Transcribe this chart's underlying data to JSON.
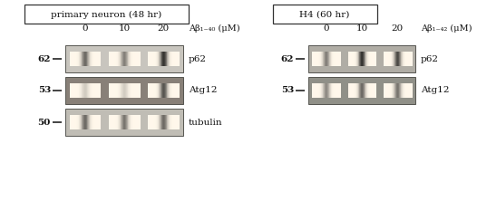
{
  "bg_color": "white",
  "left_title": "primary neuron (48 hr)",
  "right_title": "H4 (60 hr)",
  "left_xlabel": "Aβ₁₋₄₀ (μM)",
  "right_xlabel": "Aβ₁₋₄₂ (μM)",
  "conc_labels": [
    "0",
    "10",
    "20"
  ],
  "left_bands": [
    {
      "label": "p62",
      "mw": "62",
      "pattern": [
        0.65,
        0.55,
        0.9
      ],
      "box_bg": "#c8c5be"
    },
    {
      "label": "Atg12",
      "mw": "53",
      "pattern": [
        0.2,
        0.2,
        0.75
      ],
      "box_bg": "#888078"
    },
    {
      "label": "tubulin",
      "mw": "50",
      "pattern": [
        0.65,
        0.6,
        0.65
      ],
      "box_bg": "#c0bdb5"
    }
  ],
  "right_bands": [
    {
      "label": "p62",
      "mw": "62",
      "pattern": [
        0.55,
        0.9,
        0.8
      ],
      "box_bg": "#b0ada5"
    },
    {
      "label": "Atg12",
      "mw": "53",
      "pattern": [
        0.5,
        0.65,
        0.6
      ],
      "box_bg": "#909088"
    }
  ],
  "text_color": "#111111",
  "title_fontsize": 7.5,
  "label_fontsize": 7.5,
  "mw_fontsize": 7.5,
  "conc_fontsize": 7.5
}
